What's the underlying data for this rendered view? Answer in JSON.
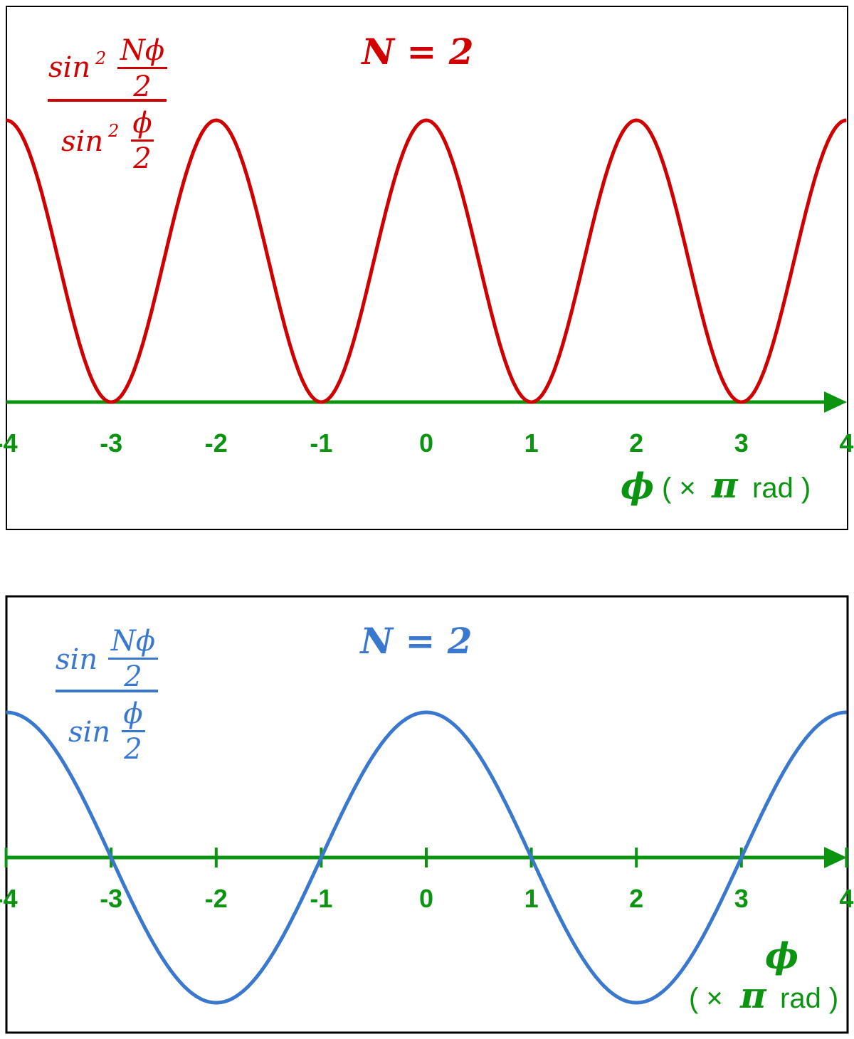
{
  "colors": {
    "top": "#d00000",
    "bottom": "#3a78d0",
    "axis": "#0a9410",
    "frame": "#000000"
  },
  "chart_data": [
    {
      "type": "line",
      "function": "sin^2(N*phi/2)/sin^2(phi/2)",
      "N_label": "N = 2",
      "formula": {
        "num_fn": "sin",
        "num_pow": "2",
        "num_arg_top": "Nϕ",
        "num_arg_bot": "2",
        "den_fn": "sin",
        "den_pow": "2",
        "den_arg_top": "ϕ",
        "den_arg_bot": "2"
      },
      "xlim": [
        -4,
        4
      ],
      "ylim": [
        0,
        4
      ],
      "x_ticks": [
        "-4",
        "-3",
        "-2",
        "-1",
        "0",
        "1",
        "2",
        "3",
        "4"
      ],
      "xlabel": {
        "symbol": "ϕ",
        "unit_open": "( ×",
        "pi": "π",
        "unit_close": "rad )"
      },
      "series": [
        {
          "x": [
            -4,
            -3,
            -2,
            -1,
            0,
            1,
            2,
            3,
            4
          ],
          "y": [
            4,
            0,
            4,
            0,
            4,
            0,
            4,
            0,
            4
          ]
        }
      ]
    },
    {
      "type": "line",
      "function": "sin(N*phi/2)/sin(phi/2)",
      "N_label": "N = 2",
      "formula": {
        "num_fn": "sin",
        "num_arg_top": "Nϕ",
        "num_arg_bot": "2",
        "den_fn": "sin",
        "den_arg_top": "ϕ",
        "den_arg_bot": "2"
      },
      "xlim": [
        -4,
        4
      ],
      "ylim": [
        -2,
        2
      ],
      "x_ticks": [
        "-4",
        "-3",
        "-2",
        "-1",
        "0",
        "1",
        "2",
        "3",
        "4"
      ],
      "xlabel": {
        "symbol": "ϕ",
        "unit_open": "( ×",
        "pi": "π",
        "unit_close": "rad )"
      },
      "series": [
        {
          "x": [
            -4,
            -3,
            -2,
            -1,
            0,
            1,
            2,
            3,
            4
          ],
          "y": [
            2,
            0,
            -2,
            0,
            2,
            0,
            -2,
            0,
            2
          ]
        }
      ]
    }
  ]
}
